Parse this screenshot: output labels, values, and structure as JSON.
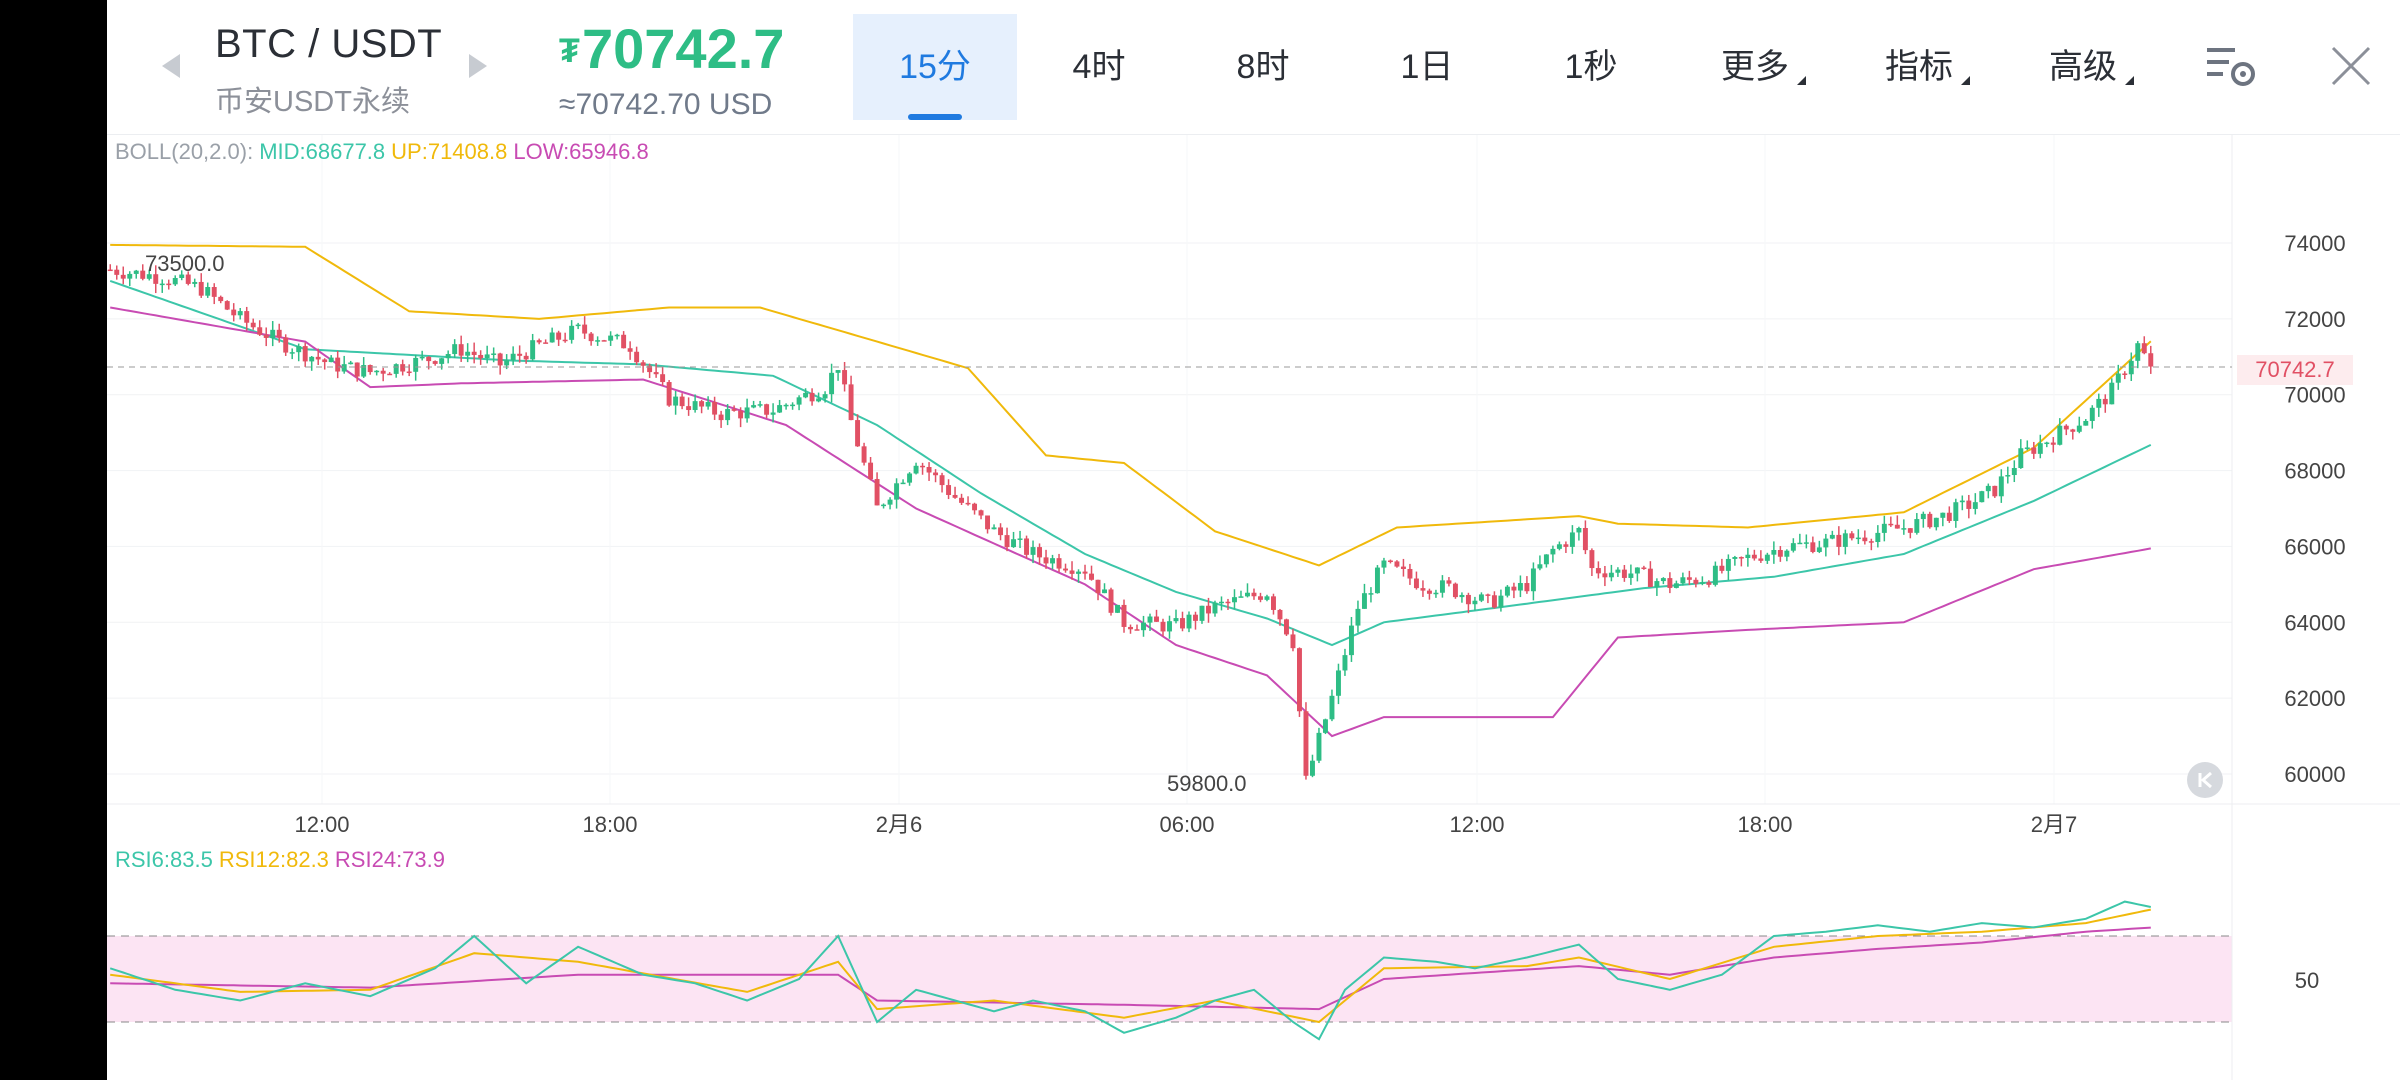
{
  "header": {
    "pair": "BTC / USDT",
    "market": "币安USDT永续",
    "price": "70742.7",
    "price_symbol": "₮",
    "price_usd": "≈70742.70 USD",
    "price_color": "#2ebd85",
    "tabs": [
      "15分",
      "4时",
      "8时",
      "1日",
      "1秒"
    ],
    "active_tab": "15分",
    "menus": [
      "更多",
      "指标",
      "高级"
    ],
    "icons": [
      "chevron-left-icon",
      "chevron-right-icon",
      "trend-up-icon",
      "chart-settings-icon",
      "close-icon"
    ]
  },
  "boll": {
    "name": "BOLL(20,2.0):",
    "mid": "MID:68677.8",
    "up": "UP:71408.8",
    "low": "LOW:65946.8",
    "colors": {
      "mid": "#3cc6a9",
      "up": "#f0b90b",
      "low": "#c84bb3"
    }
  },
  "rsi": {
    "rsi6": "RSI6:83.5",
    "rsi12": "RSI12:82.3",
    "rsi24": "RSI24:73.9",
    "level": "50",
    "colors": {
      "rsi6": "#3cc6a9",
      "rsi12": "#f0b90b",
      "rsi24": "#c84bb3"
    }
  },
  "chart_data": {
    "type": "candlestick",
    "interval": "15分",
    "y_ticks": [
      "74000",
      "72000",
      "70000",
      "68000",
      "66000",
      "64000",
      "62000",
      "60000"
    ],
    "ylim": [
      59500,
      74800
    ],
    "x_labels": [
      "12:00",
      "18:00",
      "2月6",
      "06:00",
      "12:00",
      "18:00",
      "2月7"
    ],
    "last_price": "70742.7",
    "high_marker": "73500.0",
    "low_marker": "59800.0",
    "up_color": "#2ebd85",
    "down_color": "#e15064",
    "close_path": [
      [
        0,
        73300
      ],
      [
        8,
        73100
      ],
      [
        14,
        72800
      ],
      [
        20,
        72000
      ],
      [
        26,
        71400
      ],
      [
        34,
        70800
      ],
      [
        40,
        70600
      ],
      [
        48,
        70900
      ],
      [
        54,
        71200
      ],
      [
        60,
        70800
      ],
      [
        66,
        71300
      ],
      [
        72,
        71700
      ],
      [
        80,
        71300
      ],
      [
        86,
        69900
      ],
      [
        94,
        69500
      ],
      [
        102,
        69600
      ],
      [
        110,
        70200
      ],
      [
        112,
        70800
      ],
      [
        114,
        69300
      ],
      [
        118,
        67000
      ],
      [
        124,
        68300
      ],
      [
        130,
        67300
      ],
      [
        136,
        66400
      ],
      [
        142,
        65800
      ],
      [
        150,
        65400
      ],
      [
        156,
        64000
      ],
      [
        164,
        63900
      ],
      [
        170,
        64400
      ],
      [
        178,
        64800
      ],
      [
        182,
        63500
      ],
      [
        184,
        59800
      ],
      [
        188,
        62000
      ],
      [
        192,
        64400
      ],
      [
        196,
        65500
      ],
      [
        202,
        65000
      ],
      [
        206,
        64900
      ],
      [
        212,
        64500
      ],
      [
        218,
        65000
      ],
      [
        222,
        65900
      ],
      [
        226,
        66400
      ],
      [
        228,
        65400
      ],
      [
        234,
        65300
      ],
      [
        240,
        65000
      ],
      [
        246,
        65200
      ],
      [
        252,
        65700
      ],
      [
        258,
        66000
      ],
      [
        264,
        66100
      ],
      [
        270,
        66300
      ],
      [
        276,
        66500
      ],
      [
        282,
        66800
      ],
      [
        286,
        67100
      ],
      [
        290,
        67500
      ],
      [
        294,
        68400
      ],
      [
        298,
        68800
      ],
      [
        304,
        69400
      ],
      [
        308,
        70100
      ],
      [
        312,
        71300
      ],
      [
        314,
        70742.7
      ]
    ],
    "boll_mid": [
      [
        0,
        73000
      ],
      [
        30,
        71200
      ],
      [
        62,
        70900
      ],
      [
        82,
        70800
      ],
      [
        102,
        70500
      ],
      [
        118,
        69200
      ],
      [
        134,
        67400
      ],
      [
        150,
        65800
      ],
      [
        164,
        64800
      ],
      [
        178,
        64100
      ],
      [
        188,
        63400
      ],
      [
        196,
        64000
      ],
      [
        214,
        64400
      ],
      [
        236,
        64900
      ],
      [
        256,
        65200
      ],
      [
        276,
        65800
      ],
      [
        296,
        67200
      ],
      [
        314,
        68677.8
      ]
    ],
    "boll_up": [
      [
        0,
        73950
      ],
      [
        30,
        73900
      ],
      [
        46,
        72200
      ],
      [
        66,
        72000
      ],
      [
        86,
        72300
      ],
      [
        100,
        72300
      ],
      [
        112,
        71700
      ],
      [
        132,
        70700
      ],
      [
        144,
        68400
      ],
      [
        156,
        68200
      ],
      [
        170,
        66400
      ],
      [
        186,
        65500
      ],
      [
        198,
        66500
      ],
      [
        226,
        66800
      ],
      [
        232,
        66600
      ],
      [
        252,
        66500
      ],
      [
        276,
        66900
      ],
      [
        296,
        68600
      ],
      [
        314,
        71408.8
      ]
    ],
    "boll_low": [
      [
        0,
        72300
      ],
      [
        30,
        71400
      ],
      [
        40,
        70200
      ],
      [
        54,
        70300
      ],
      [
        82,
        70400
      ],
      [
        104,
        69200
      ],
      [
        124,
        67000
      ],
      [
        150,
        65000
      ],
      [
        164,
        63400
      ],
      [
        178,
        62600
      ],
      [
        188,
        61000
      ],
      [
        196,
        61500
      ],
      [
        222,
        61500
      ],
      [
        232,
        63600
      ],
      [
        252,
        63800
      ],
      [
        276,
        64000
      ],
      [
        296,
        65400
      ],
      [
        314,
        65946.8
      ]
    ],
    "rsi6": [
      [
        0,
        55
      ],
      [
        10,
        45
      ],
      [
        20,
        40
      ],
      [
        30,
        48
      ],
      [
        40,
        42
      ],
      [
        50,
        55
      ],
      [
        56,
        70
      ],
      [
        64,
        48
      ],
      [
        72,
        65
      ],
      [
        82,
        52
      ],
      [
        90,
        48
      ],
      [
        98,
        40
      ],
      [
        106,
        50
      ],
      [
        112,
        70
      ],
      [
        118,
        30
      ],
      [
        124,
        45
      ],
      [
        130,
        40
      ],
      [
        136,
        35
      ],
      [
        142,
        40
      ],
      [
        150,
        35
      ],
      [
        156,
        25
      ],
      [
        164,
        32
      ],
      [
        170,
        40
      ],
      [
        176,
        45
      ],
      [
        182,
        30
      ],
      [
        186,
        22
      ],
      [
        190,
        45
      ],
      [
        196,
        60
      ],
      [
        204,
        58
      ],
      [
        210,
        55
      ],
      [
        218,
        60
      ],
      [
        226,
        66
      ],
      [
        232,
        50
      ],
      [
        240,
        45
      ],
      [
        248,
        52
      ],
      [
        256,
        70
      ],
      [
        264,
        72
      ],
      [
        272,
        75
      ],
      [
        280,
        72
      ],
      [
        288,
        76
      ],
      [
        296,
        74
      ],
      [
        304,
        78
      ],
      [
        310,
        86
      ],
      [
        314,
        83.5
      ]
    ],
    "rsi12": [
      [
        0,
        52
      ],
      [
        20,
        44
      ],
      [
        40,
        45
      ],
      [
        56,
        62
      ],
      [
        72,
        58
      ],
      [
        98,
        44
      ],
      [
        112,
        58
      ],
      [
        118,
        36
      ],
      [
        136,
        40
      ],
      [
        156,
        32
      ],
      [
        170,
        40
      ],
      [
        186,
        30
      ],
      [
        196,
        55
      ],
      [
        218,
        56
      ],
      [
        226,
        60
      ],
      [
        240,
        50
      ],
      [
        256,
        65
      ],
      [
        272,
        70
      ],
      [
        288,
        72
      ],
      [
        304,
        76
      ],
      [
        314,
        82.3
      ]
    ],
    "rsi24": [
      [
        0,
        48
      ],
      [
        40,
        46
      ],
      [
        72,
        52
      ],
      [
        112,
        52
      ],
      [
        118,
        40
      ],
      [
        156,
        38
      ],
      [
        186,
        36
      ],
      [
        196,
        50
      ],
      [
        226,
        56
      ],
      [
        240,
        52
      ],
      [
        256,
        60
      ],
      [
        272,
        64
      ],
      [
        288,
        67
      ],
      [
        304,
        72
      ],
      [
        314,
        73.9
      ]
    ]
  }
}
